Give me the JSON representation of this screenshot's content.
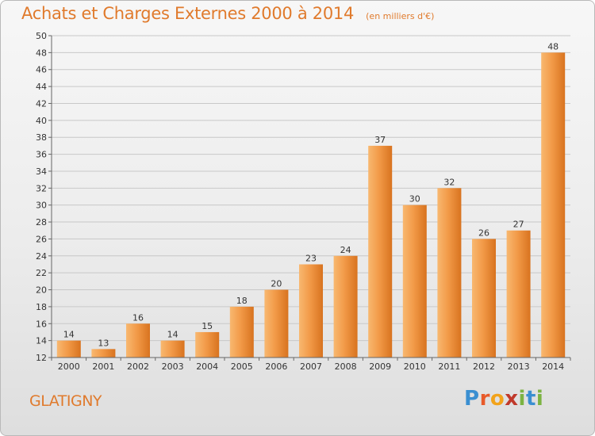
{
  "header": {
    "title": "Achats et Charges Externes 2000 à 2014",
    "unit": "(en milliers d'€)"
  },
  "commune": "GLATIGNY",
  "logo": {
    "text": "Proxiti",
    "colors": [
      "#3a8fd1",
      "#e85a2a",
      "#f2a31b",
      "#c0392b",
      "#7cb342",
      "#3a8fd1",
      "#7cb342"
    ]
  },
  "colors": {
    "accent": "#e07a2c",
    "bar_light": "#f6a95a",
    "bar_dark": "#d8731f",
    "grid": "#c8c8c8"
  },
  "chart_data": {
    "type": "bar",
    "title": "Achats et Charges Externes 2000 à 2014",
    "subtitle": "(en milliers d'€)",
    "categories": [
      "2000",
      "2001",
      "2002",
      "2003",
      "2004",
      "2005",
      "2006",
      "2007",
      "2008",
      "2009",
      "2010",
      "2011",
      "2012",
      "2013",
      "2014"
    ],
    "values": [
      14,
      13,
      16,
      14,
      15,
      18,
      20,
      23,
      24,
      37,
      30,
      32,
      26,
      27,
      48
    ],
    "ylim": [
      12,
      50
    ],
    "yticks": [
      12,
      14,
      16,
      18,
      20,
      22,
      24,
      26,
      28,
      30,
      32,
      34,
      36,
      38,
      40,
      42,
      44,
      46,
      48,
      50
    ],
    "grid": true,
    "data_labels": true
  }
}
